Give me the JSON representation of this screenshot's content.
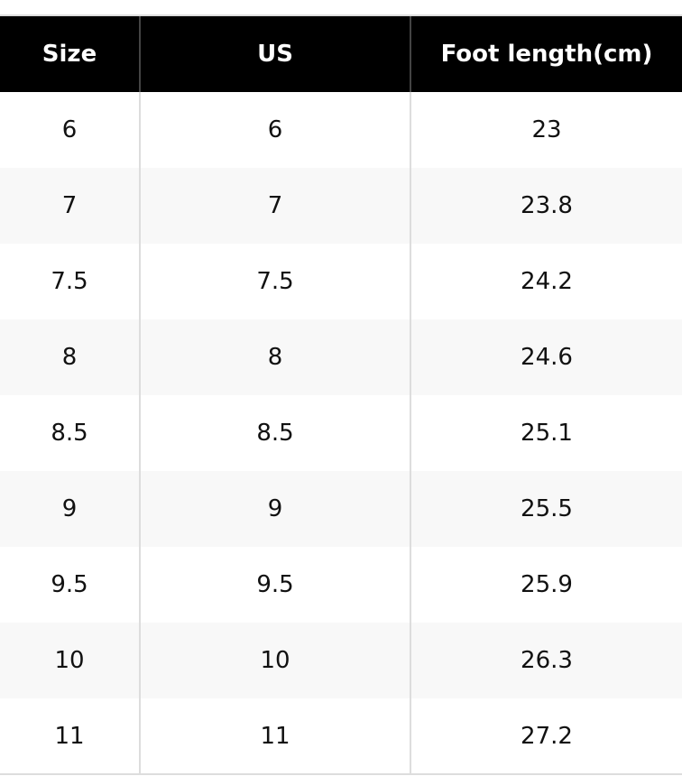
{
  "table": {
    "header": [
      "Size",
      "US",
      "Foot length(cm)"
    ],
    "rows": [
      [
        "6",
        "6",
        "23"
      ],
      [
        "7",
        "7",
        "23.8"
      ],
      [
        "7.5",
        "7.5",
        "24.2"
      ],
      [
        "8",
        "8",
        "24.6"
      ],
      [
        "8.5",
        "8.5",
        "25.1"
      ],
      [
        "9",
        "9",
        "25.5"
      ],
      [
        "9.5",
        "9.5",
        "25.9"
      ],
      [
        "10",
        "10",
        "26.3"
      ],
      [
        "11",
        "11",
        "27.2"
      ]
    ]
  }
}
